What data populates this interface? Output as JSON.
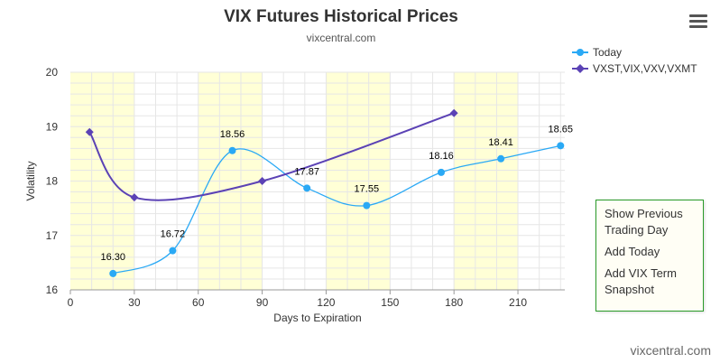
{
  "header": {
    "title": "VIX Futures Historical Prices",
    "subtitle": "vixcentral.com"
  },
  "menu_icon": "hamburger-menu-icon",
  "side_menu": {
    "items": [
      "Show Previous Trading Day",
      "Add Today",
      "Add VIX Term Snapshot"
    ]
  },
  "footer": {
    "credit": "vixcentral.com"
  },
  "chart_data": {
    "type": "line",
    "xlabel": "Days to Expiration",
    "ylabel": "Volatility",
    "xlim": [
      0,
      232
    ],
    "ylim": [
      16,
      20
    ],
    "x_ticks": [
      0,
      30,
      60,
      90,
      120,
      150,
      180,
      210
    ],
    "y_ticks": [
      16,
      17,
      18,
      19,
      20
    ],
    "grid": true,
    "legend_position": "top-right",
    "shaded_bands": [
      [
        0,
        30
      ],
      [
        60,
        90
      ],
      [
        120,
        150
      ],
      [
        180,
        210
      ]
    ],
    "colors": {
      "band": "#ffffd6",
      "grid": "#e6e6e6"
    },
    "series": [
      {
        "name": "Today",
        "color": "#2aa9f5",
        "marker": "circle",
        "smooth": true,
        "x": [
          20,
          48,
          76,
          111,
          139,
          174,
          202,
          230
        ],
        "values": [
          16.3,
          16.72,
          18.56,
          17.87,
          17.55,
          18.16,
          18.41,
          18.65
        ],
        "labels": [
          "16.30",
          "16.72",
          "18.56",
          "17.87",
          "17.55",
          "18.16",
          "18.41",
          "18.65"
        ]
      },
      {
        "name": "VXST,VIX,VXV,VXMT",
        "color": "#5b42b5",
        "marker": "diamond",
        "smooth": true,
        "x": [
          9,
          30,
          90,
          180
        ],
        "values": [
          18.9,
          17.7,
          18.0,
          19.25
        ]
      }
    ]
  }
}
